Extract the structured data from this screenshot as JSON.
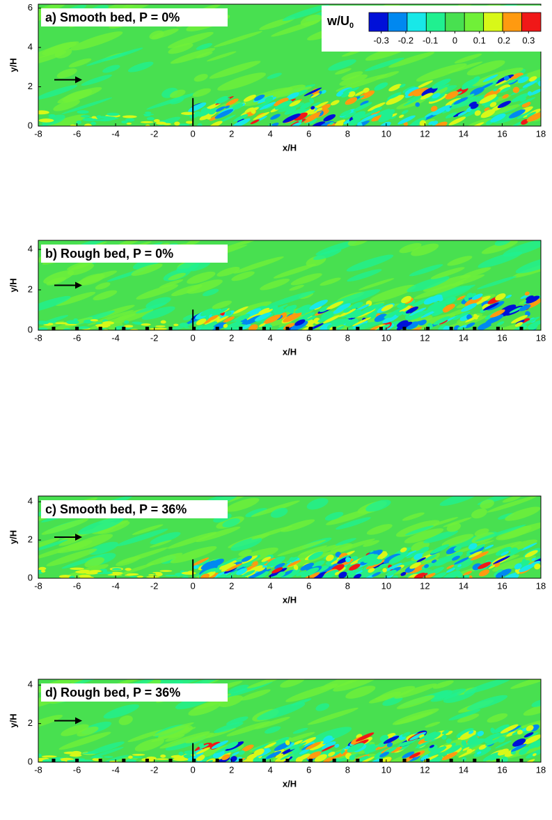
{
  "chart_data": [
    {
      "type": "contour",
      "title": "a) Smooth bed, P = 0%",
      "xlabel": "x/H",
      "ylabel": "y/H",
      "xlim": [
        -8,
        18.0
      ],
      "xticks": [
        -8,
        -6,
        -4,
        -2,
        0,
        2,
        4,
        6,
        8,
        10,
        12,
        14,
        16,
        18
      ],
      "ylim": [
        0,
        6.2
      ],
      "yticks": [
        0,
        2,
        4,
        6
      ],
      "rough_bed": false,
      "colorbar": {
        "title": "w/U",
        "title_sub": "0",
        "clim": [
          -0.35,
          0.35
        ],
        "ticks": [
          -0.3,
          -0.2,
          -0.1,
          0,
          0.1,
          0.2,
          0.3
        ],
        "colors": [
          "#0010d8",
          "#0088f0",
          "#18e8e8",
          "#20f090",
          "#48e050",
          "#70f038",
          "#d8f818",
          "#ff9a10",
          "#f01818"
        ]
      }
    },
    {
      "type": "contour",
      "title": "b) Rough bed, P = 0%",
      "xlabel": "x/H",
      "ylabel": "y/H",
      "xlim": [
        -8,
        18.0
      ],
      "xticks": [
        -8,
        -6,
        -4,
        -2,
        0,
        2,
        4,
        6,
        8,
        10,
        12,
        14,
        16,
        18
      ],
      "ylim": [
        0,
        4.45
      ],
      "yticks": [
        0,
        2,
        4
      ],
      "rough_bed": true
    },
    {
      "type": "contour",
      "title": "c) Smooth bed, P = 36%",
      "xlabel": "x/H",
      "ylabel": "y/H",
      "xlim": [
        -8,
        18.0
      ],
      "xticks": [
        -8,
        -6,
        -4,
        -2,
        0,
        2,
        4,
        6,
        8,
        10,
        12,
        14,
        16,
        18
      ],
      "ylim": [
        0,
        4.3
      ],
      "yticks": [
        0,
        2,
        4
      ],
      "rough_bed": false
    },
    {
      "type": "contour",
      "title": "d) Rough bed, P = 36%",
      "xlabel": "x/H",
      "ylabel": "y/H",
      "xlim": [
        -8,
        18.0
      ],
      "xticks": [
        -8,
        -6,
        -4,
        -2,
        0,
        2,
        4,
        6,
        8,
        10,
        12,
        14,
        16,
        18
      ],
      "ylim": [
        0,
        4.3
      ],
      "yticks": [
        0,
        2,
        4
      ],
      "rough_bed": true
    }
  ]
}
